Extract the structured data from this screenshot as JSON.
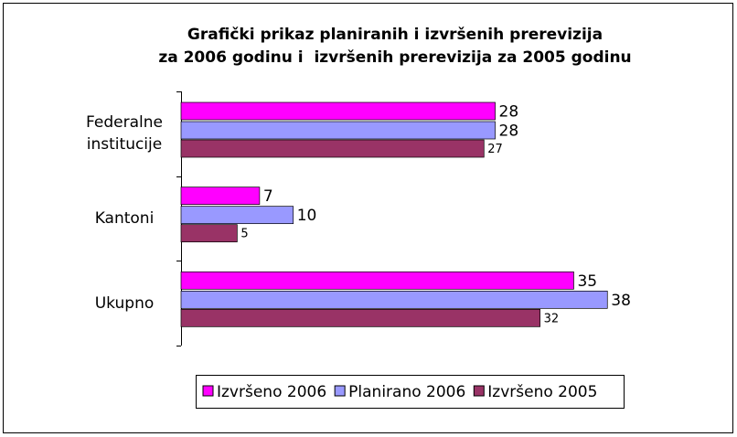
{
  "chart_data": {
    "type": "bar",
    "orientation": "horizontal",
    "title": [
      "Grafički prikaz planiranih i izvršenih prerevizija",
      "za 2006 godinu i  izvršenih prerevizija za 2005 godinu"
    ],
    "categories": [
      "Federalne institucije",
      "Kantoni",
      "Ukupno"
    ],
    "series": [
      {
        "name": "Izvršeno 2006",
        "color": "#ff00ff",
        "values": [
          28,
          7,
          35
        ]
      },
      {
        "name": "Planirano 2006",
        "color": "#9999ff",
        "values": [
          28,
          10,
          38
        ]
      },
      {
        "name": "Izvršeno 2005",
        "color": "#993366",
        "values": [
          27,
          5,
          32
        ]
      }
    ],
    "xlim": [
      0,
      40
    ],
    "legend": "bottom"
  }
}
